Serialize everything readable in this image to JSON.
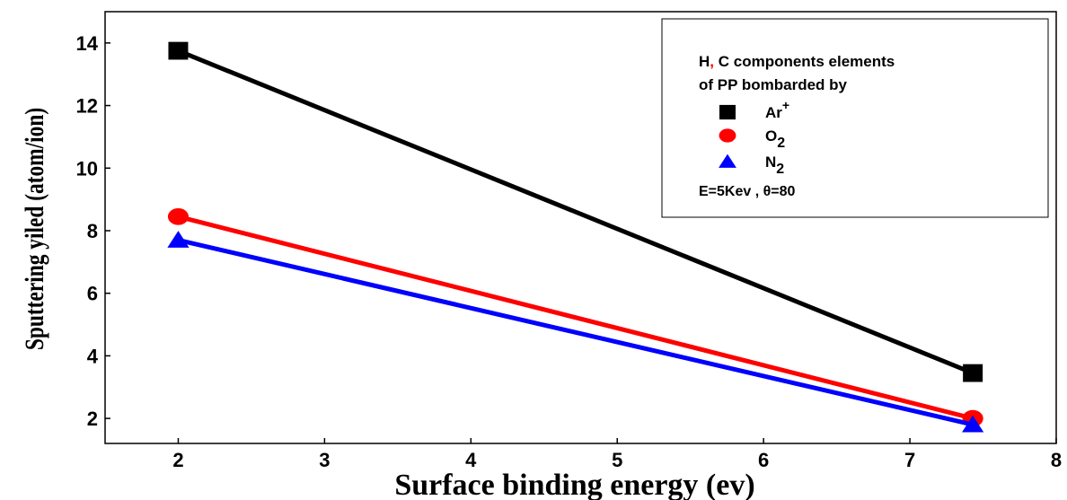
{
  "chart_data": {
    "type": "line",
    "xlabel": "Surface binding energy (ev)",
    "ylabel": "Sputtering yiled (atom/ion)",
    "xlim": [
      1.5,
      8
    ],
    "ylim": [
      1.2,
      15
    ],
    "x_ticks": [
      "2",
      "3",
      "4",
      "5",
      "6",
      "7",
      "8"
    ],
    "y_ticks": [
      "2",
      "4",
      "6",
      "8",
      "10",
      "12",
      "14"
    ],
    "x_tick_values": [
      2,
      3,
      4,
      5,
      6,
      7,
      8
    ],
    "y_tick_values": [
      2,
      4,
      6,
      8,
      10,
      12,
      14
    ],
    "grid": false,
    "legend_position": "top-right",
    "legend": {
      "title_line1_prefix": "H",
      "title_comma": ",",
      "title_line1_rest": " C components elements",
      "title_line2": "of PP bombarded by",
      "note": "E=5Kev , θ=80"
    },
    "series": [
      {
        "name": "Ar",
        "name_sup": "+",
        "name_sub": "",
        "marker": "square",
        "color": "#000000",
        "x": [
          2,
          7.43
        ],
        "values": [
          13.75,
          3.45
        ]
      },
      {
        "name": "O",
        "name_sup": "",
        "name_sub": "2",
        "marker": "circle",
        "color": "#ff0000",
        "x": [
          2,
          7.43
        ],
        "values": [
          8.45,
          2.0
        ]
      },
      {
        "name": "N",
        "name_sup": "",
        "name_sub": "2",
        "marker": "triangle",
        "color": "#0000ff",
        "x": [
          2,
          7.43
        ],
        "values": [
          7.7,
          1.8
        ]
      }
    ]
  },
  "colors": {
    "axis": "#000000",
    "comma_accent": "#ff0000"
  }
}
